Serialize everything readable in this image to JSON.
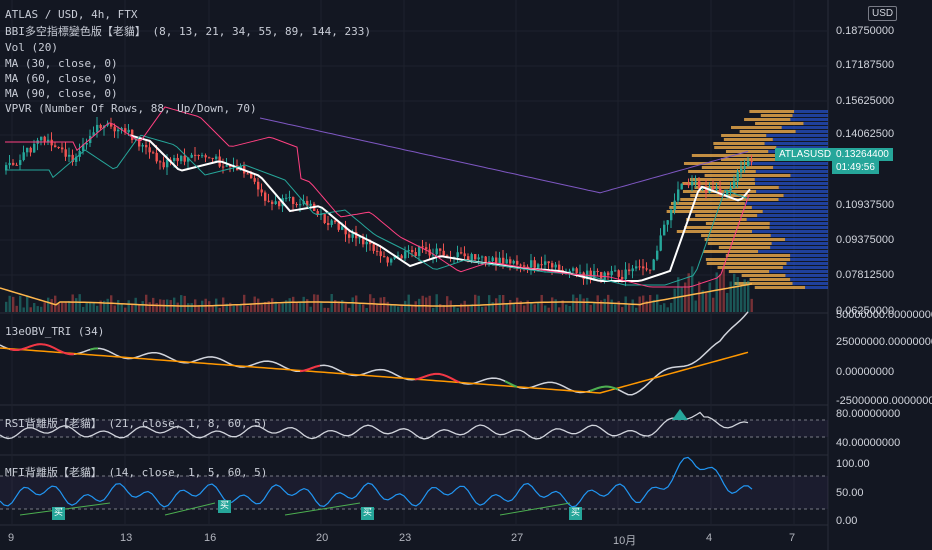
{
  "header": {
    "symbol_line": "ATLAS / USD, 4h, FTX",
    "indicators": [
      "BBI多空指標變色版【老貓】 (8, 13, 21, 34, 55, 89, 144, 233)",
      "Vol (20)",
      "MA (30, close, 0)",
      "MA (60, close, 0)",
      "MA (90, close, 0)",
      "VPVR (Number Of Rows, 88, Up/Down, 70)"
    ],
    "currency_button": "USD"
  },
  "price_axis": {
    "labels": [
      "0.18750000",
      "0.17187500",
      "0.15625000",
      "0.14062500",
      "0.10937500",
      "0.09375000",
      "0.07812500",
      "0.06250000"
    ],
    "current_symbol_tag": "ATLASUSD",
    "current_price": "0.13264400",
    "countdown": "01:49:56"
  },
  "obv_pane": {
    "title": "13eOBV_TRI (34)",
    "labels": [
      "25000000.00000000",
      "0.00000000",
      "-25000000.00000000"
    ],
    "top_label": "50000000.00000000"
  },
  "rsi_pane": {
    "title": "RSI背離版【老貓】 (21, close, 1, 8, 60, 5)",
    "labels": [
      "80.00000000",
      "40.00000000"
    ]
  },
  "mfi_pane": {
    "title": "MFI背離版【老貓】 (14, close, 1, 5, 60, 5)",
    "labels": [
      "100.00",
      "50.00",
      "0.00"
    ],
    "buy_marker": "买"
  },
  "time_axis": {
    "labels": [
      "9",
      "13",
      "16",
      "20",
      "23",
      "27",
      "10月",
      "4",
      "7"
    ]
  },
  "colors": {
    "background": "#131722",
    "up": "#26a69a",
    "down": "#ef5350",
    "ma30": "#ffffff",
    "ma60": "#26a69a",
    "ma90": "#7e57c2",
    "bbi": "#ff4081",
    "vol_ma": "#ffb74d",
    "vpvr_up": "#2962ff",
    "vpvr_down": "#ffb74d",
    "rsi": "#d1d4dc",
    "mfi": "#2196f3"
  }
}
